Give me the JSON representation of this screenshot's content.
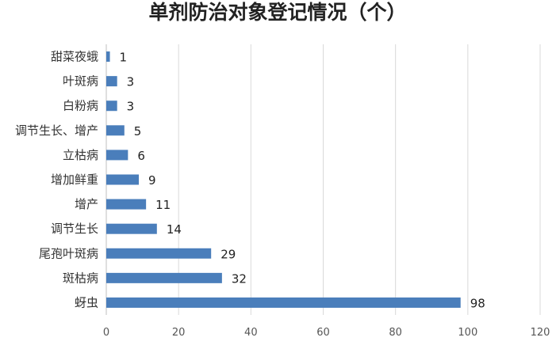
{
  "chart_data": {
    "type": "bar",
    "orientation": "horizontal",
    "title": "单剂防治对象登记情况（个）",
    "xlabel": "",
    "ylabel": "",
    "categories": [
      "甜菜夜蛾",
      "叶斑病",
      "白粉病",
      "调节生长、增产",
      "立枯病",
      "增加鲜重",
      "增产",
      "调节生长",
      "尾孢叶斑病",
      "斑枯病",
      "蚜虫"
    ],
    "values": [
      1,
      3,
      3,
      5,
      6,
      9,
      11,
      14,
      29,
      32,
      98
    ],
    "xlim": [
      0,
      120
    ],
    "xticks": [
      0,
      20,
      40,
      60,
      80,
      100,
      120
    ],
    "grid": "vertical",
    "legend": "none",
    "bar_color": "#4A7EBB",
    "grid_color": "#D9D9D9"
  }
}
